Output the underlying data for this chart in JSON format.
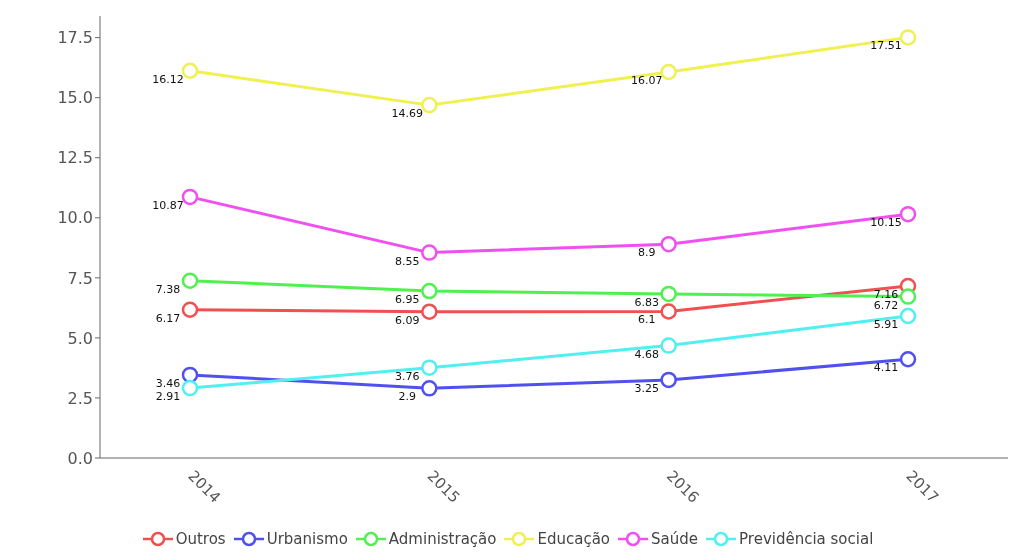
{
  "chart_data": {
    "type": "line",
    "categories": [
      "2014",
      "2015",
      "2016",
      "2017"
    ],
    "series": [
      {
        "name": "Outros",
        "color": "#f05050",
        "values": [
          6.17,
          6.09,
          6.1,
          7.16
        ]
      },
      {
        "name": "Urbanismo",
        "color": "#5050f0",
        "values": [
          3.46,
          2.9,
          3.25,
          4.11
        ]
      },
      {
        "name": "Administração",
        "color": "#50f050",
        "values": [
          7.38,
          6.95,
          6.83,
          6.72
        ]
      },
      {
        "name": "Educação",
        "color": "#f0f050",
        "values": [
          16.12,
          14.69,
          16.07,
          17.51
        ]
      },
      {
        "name": "Saúde",
        "color": "#f050f0",
        "values": [
          10.87,
          8.55,
          8.9,
          10.15
        ]
      },
      {
        "name": "Previdência social",
        "color": "#50f0f0",
        "values": [
          2.91,
          3.76,
          4.68,
          5.91
        ]
      }
    ],
    "ylim": [
      0,
      18.4
    ],
    "yticks": [
      {
        "value": 0,
        "label": "0.0"
      },
      {
        "value": 2.5,
        "label": "2.5"
      },
      {
        "value": 5,
        "label": "5.0"
      },
      {
        "value": 7.5,
        "label": "7.5"
      },
      {
        "value": 10,
        "label": "10.0"
      },
      {
        "value": 12.5,
        "label": "12.5"
      },
      {
        "value": 15,
        "label": "15.0"
      },
      {
        "value": 17.5,
        "label": "17.5"
      }
    ],
    "data_labels": true,
    "legend": "bottom",
    "marker": "circle",
    "line_style": "solid",
    "grid": false
  }
}
